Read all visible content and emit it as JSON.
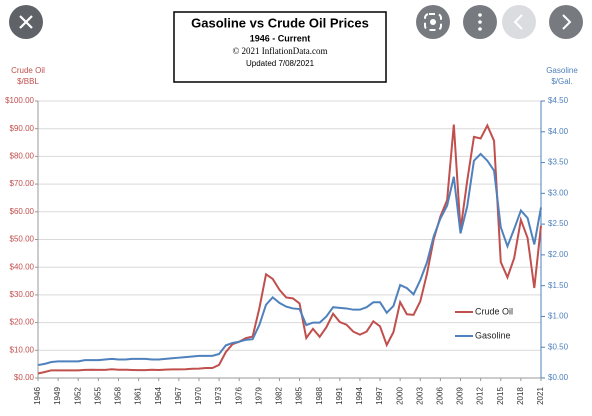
{
  "chart_data": {
    "type": "line",
    "title": "Gasoline vs Crude Oil Prices",
    "subtitle": "1946 - Current",
    "annotations": [
      "© 2021 InflationData.com",
      "Updated   7/08/2021"
    ],
    "y_label": [
      "Crude Oil",
      "$/BBL"
    ],
    "y2_label": [
      "Gasoline",
      "$/Gal."
    ],
    "x": [
      1946,
      1947,
      1948,
      1949,
      1950,
      1951,
      1952,
      1953,
      1954,
      1955,
      1956,
      1957,
      1958,
      1959,
      1960,
      1961,
      1962,
      1963,
      1964,
      1965,
      1966,
      1967,
      1968,
      1969,
      1970,
      1971,
      1972,
      1973,
      1974,
      1975,
      1976,
      1977,
      1978,
      1979,
      1980,
      1981,
      1982,
      1983,
      1984,
      1985,
      1986,
      1987,
      1988,
      1989,
      1990,
      1991,
      1992,
      1993,
      1994,
      1995,
      1996,
      1997,
      1998,
      1999,
      2000,
      2001,
      2002,
      2003,
      2004,
      2005,
      2006,
      2007,
      2008,
      2009,
      2010,
      2011,
      2012,
      2013,
      2014,
      2015,
      2016,
      2017,
      2018,
      2019,
      2020,
      2021
    ],
    "xlim": [
      1946,
      2021
    ],
    "xticks": [
      1946,
      1949,
      1952,
      1955,
      1958,
      1961,
      1964,
      1967,
      1970,
      1973,
      1976,
      1979,
      1982,
      1985,
      1988,
      1991,
      1994,
      1997,
      2000,
      2003,
      2006,
      2009,
      2012,
      2015,
      2018,
      2021
    ],
    "series": [
      {
        "name": "Crude Oil",
        "color": "#c0504d",
        "values": [
          1.63,
          2.16,
          2.77,
          2.77,
          2.77,
          2.77,
          2.77,
          2.92,
          2.99,
          2.93,
          2.94,
          3.14,
          3.0,
          3.0,
          2.91,
          2.85,
          2.85,
          3.0,
          2.88,
          3.01,
          3.1,
          3.12,
          3.18,
          3.32,
          3.39,
          3.6,
          3.6,
          4.75,
          9.35,
          12.21,
          13.1,
          14.4,
          14.95,
          25.1,
          37.42,
          35.75,
          31.83,
          29.08,
          28.75,
          26.92,
          14.44,
          17.75,
          14.87,
          18.33,
          23.19,
          20.2,
          19.25,
          16.75,
          15.66,
          16.75,
          20.46,
          18.64,
          11.91,
          16.56,
          27.39,
          23.0,
          22.81,
          27.69,
          37.66,
          50.04,
          58.3,
          64.2,
          91.48,
          53.48,
          71.21,
          87.04,
          86.46,
          91.17,
          85.6,
          41.85,
          36.34,
          43.29,
          57.06,
          50.56,
          32.5,
          55.0
        ]
      },
      {
        "name": "Gasoline",
        "color": "#4f81bd",
        "axis": "y2",
        "values": [
          0.21,
          0.23,
          0.26,
          0.27,
          0.27,
          0.27,
          0.27,
          0.29,
          0.29,
          0.29,
          0.3,
          0.31,
          0.3,
          0.3,
          0.31,
          0.31,
          0.31,
          0.3,
          0.3,
          0.31,
          0.32,
          0.33,
          0.34,
          0.35,
          0.36,
          0.36,
          0.36,
          0.39,
          0.53,
          0.57,
          0.59,
          0.62,
          0.63,
          0.86,
          1.19,
          1.31,
          1.22,
          1.16,
          1.13,
          1.12,
          0.86,
          0.9,
          0.9,
          1.0,
          1.15,
          1.14,
          1.13,
          1.11,
          1.11,
          1.15,
          1.23,
          1.23,
          1.06,
          1.17,
          1.51,
          1.46,
          1.36,
          1.59,
          1.88,
          2.3,
          2.59,
          2.8,
          3.27,
          2.35,
          2.79,
          3.53,
          3.64,
          3.53,
          3.37,
          2.45,
          2.14,
          2.42,
          2.72,
          2.6,
          2.17,
          2.77
        ]
      }
    ],
    "ylim": [
      0,
      100
    ],
    "yticks": [
      {
        "value": 0,
        "label": "$0.00"
      },
      {
        "value": 10,
        "label": "$10.00"
      },
      {
        "value": 20,
        "label": "$20.00"
      },
      {
        "value": 30,
        "label": "$30.00"
      },
      {
        "value": 40,
        "label": "$40.00"
      },
      {
        "value": 50,
        "label": "$50.00"
      },
      {
        "value": 60,
        "label": "$60.00"
      },
      {
        "value": 70,
        "label": "$70.00"
      },
      {
        "value": 80,
        "label": "$80.00"
      },
      {
        "value": 90,
        "label": "$90.00"
      },
      {
        "value": 100,
        "label": "$100.00"
      }
    ],
    "y2lim": [
      0,
      4.5
    ],
    "y2ticks": [
      {
        "value": 0,
        "label": "$0.00"
      },
      {
        "value": 0.5,
        "label": "$0.50"
      },
      {
        "value": 1,
        "label": "$1.00"
      },
      {
        "value": 1.5,
        "label": "$1.50"
      },
      {
        "value": 2,
        "label": "$2.00"
      },
      {
        "value": 2.5,
        "label": "$2.50"
      },
      {
        "value": 3,
        "label": "$3.00"
      },
      {
        "value": 3.5,
        "label": "$3.50"
      },
      {
        "value": 4,
        "label": "$4.00"
      },
      {
        "value": 4.5,
        "label": "$4.50"
      }
    ],
    "grid": true,
    "legend": "lower right"
  }
}
